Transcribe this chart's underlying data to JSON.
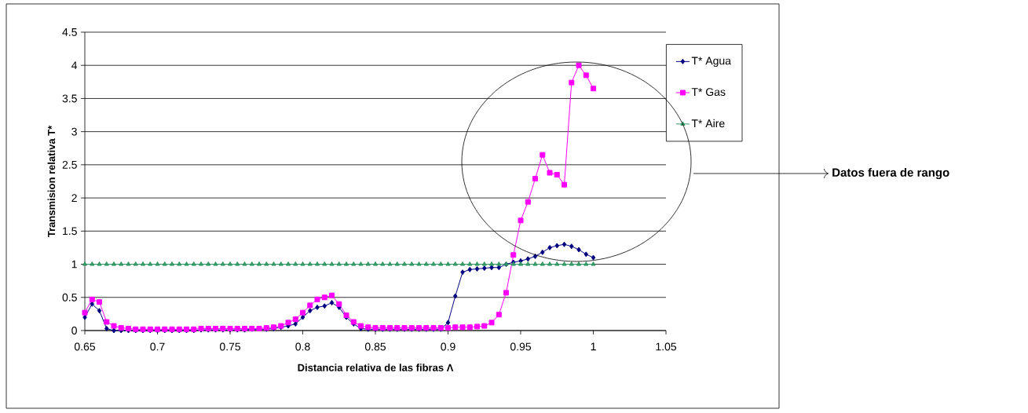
{
  "chart_data": {
    "type": "line",
    "xlabel": "Distancia  relativa de las fibras Λ",
    "ylabel": "Transmision relativa T*",
    "x": [
      0.65,
      0.655,
      0.66,
      0.665,
      0.67,
      0.675,
      0.68,
      0.685,
      0.69,
      0.695,
      0.7,
      0.705,
      0.71,
      0.715,
      0.72,
      0.725,
      0.73,
      0.735,
      0.74,
      0.745,
      0.75,
      0.755,
      0.76,
      0.765,
      0.77,
      0.775,
      0.78,
      0.785,
      0.79,
      0.795,
      0.8,
      0.805,
      0.81,
      0.815,
      0.82,
      0.825,
      0.83,
      0.835,
      0.84,
      0.845,
      0.85,
      0.855,
      0.86,
      0.865,
      0.87,
      0.875,
      0.88,
      0.885,
      0.89,
      0.895,
      0.9,
      0.905,
      0.91,
      0.915,
      0.92,
      0.925,
      0.93,
      0.935,
      0.94,
      0.945,
      0.95,
      0.955,
      0.96,
      0.965,
      0.97,
      0.975,
      0.98,
      0.985,
      0.99,
      0.995,
      1.0
    ],
    "series": [
      {
        "name": "T* Agua",
        "color": "#000080",
        "marker": "diamond",
        "values": [
          0.2,
          0.4,
          0.3,
          0.03,
          0,
          0,
          0,
          0,
          0,
          0,
          0,
          0,
          0,
          0,
          0,
          0,
          0.01,
          0.01,
          0.01,
          0.01,
          0.01,
          0.01,
          0.01,
          0.02,
          null,
          0.02,
          0.03,
          0.05,
          0.07,
          0.1,
          0.2,
          0.3,
          0.35,
          0.37,
          0.42,
          0.35,
          0.2,
          0.1,
          0.03,
          0.02,
          0.02,
          0.02,
          0.02,
          0.02,
          0.02,
          0.02,
          0.02,
          0.02,
          0.02,
          0.02,
          0.12,
          0.52,
          0.88,
          0.92,
          0.93,
          0.94,
          0.95,
          0.95,
          1.0,
          1.03,
          1.05,
          1.08,
          1.12,
          1.18,
          1.25,
          1.28,
          1.3,
          1.27,
          1.22,
          1.15,
          1.1
        ]
      },
      {
        "name": "T* Gas",
        "color": "#ff00ff",
        "marker": "square",
        "values": [
          0.27,
          0.47,
          0.43,
          0.13,
          0.07,
          0.04,
          0.03,
          0.02,
          0.02,
          0.02,
          0.02,
          0.02,
          0.02,
          0.02,
          0.02,
          0.02,
          0.03,
          0.03,
          0.03,
          0.03,
          0.03,
          0.03,
          0.03,
          0.03,
          0.03,
          0.04,
          0.05,
          0.07,
          0.12,
          0.17,
          0.27,
          0.38,
          0.47,
          0.5,
          0.53,
          0.4,
          0.23,
          0.13,
          0.07,
          0.05,
          0.04,
          0.04,
          0.04,
          0.04,
          0.04,
          0.04,
          0.04,
          0.04,
          0.04,
          0.04,
          0.04,
          0.05,
          0.05,
          0.05,
          0.06,
          0.07,
          0.12,
          0.24,
          0.57,
          1.14,
          1.66,
          1.94,
          2.29,
          2.65,
          2.38,
          2.35,
          2.2,
          3.74,
          4.0,
          3.85,
          3.65
        ]
      },
      {
        "name": "T* Aire",
        "color": "#339966",
        "marker": "triangle",
        "values": [
          1,
          1,
          1,
          1,
          1,
          1,
          1,
          1,
          1,
          1,
          1,
          1,
          1,
          1,
          1,
          1,
          1,
          1,
          1,
          1,
          1,
          1,
          1,
          1,
          1,
          1,
          1,
          1,
          1,
          1,
          1,
          1,
          1,
          1,
          1,
          1,
          1,
          1,
          1,
          1,
          1,
          1,
          1,
          1,
          1,
          1,
          1,
          1,
          1,
          1,
          1,
          1,
          1,
          1,
          1,
          1,
          1,
          1,
          1,
          1,
          1,
          1,
          1,
          1,
          1,
          1,
          1,
          1,
          1,
          1,
          1
        ]
      }
    ],
    "xlim": [
      0.65,
      1.05
    ],
    "xticks": [
      0.65,
      0.7,
      0.75,
      0.8,
      0.85,
      0.9,
      0.95,
      1,
      1.05
    ],
    "ylim": [
      0,
      4.5
    ],
    "yticks": [
      0,
      0.5,
      1,
      1.5,
      2,
      2.5,
      3,
      3.5,
      4,
      4.5
    ],
    "grid": "y",
    "legend": "right",
    "line_style": "solid",
    "annotations": [
      "Datos fuera de rango"
    ]
  }
}
